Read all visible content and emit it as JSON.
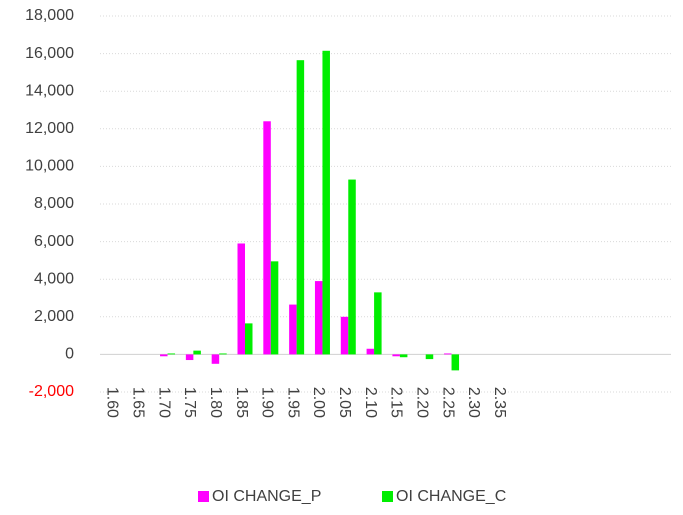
{
  "chart_data": {
    "type": "bar",
    "categories": [
      "1.60",
      "1.65",
      "1.70",
      "1.75",
      "1.80",
      "1.85",
      "1.90",
      "1.95",
      "2.00",
      "2.05",
      "2.10",
      "2.15",
      "2.20",
      "2.25",
      "2.30",
      "2.35",
      null,
      null,
      null,
      null,
      null,
      null
    ],
    "series": [
      {
        "name": "OI CHANGE_P",
        "color": "#ff00ff",
        "values": [
          0,
          0,
          -100,
          -300,
          -500,
          5900,
          12400,
          2650,
          3900,
          2000,
          300,
          -100,
          0,
          50,
          0,
          0,
          null,
          null,
          null,
          null,
          null,
          null
        ]
      },
      {
        "name": "OI CHANGE_C",
        "color": "#00ee00",
        "values": [
          0,
          0,
          50,
          200,
          50,
          1650,
          4950,
          15650,
          16150,
          9300,
          3300,
          -150,
          -250,
          -850,
          0,
          0,
          null,
          null,
          null,
          null,
          null,
          null
        ]
      }
    ],
    "ylim": [
      -2000,
      18000
    ],
    "yticks": [
      {
        "value": -2000,
        "label": "-2,000"
      },
      0,
      {
        "value": 2000,
        "label": "2,000"
      },
      {
        "value": 4000,
        "label": "4,000"
      },
      {
        "value": 6000,
        "label": "6,000"
      },
      {
        "value": 8000,
        "label": "8,000"
      },
      {
        "value": 10000,
        "label": "10,000"
      },
      {
        "value": 12000,
        "label": "12,000"
      },
      {
        "value": 14000,
        "label": "14,000"
      },
      {
        "value": 16000,
        "label": "16,000"
      },
      {
        "value": 18000,
        "label": "18,000"
      }
    ],
    "grid": true,
    "negative_tick_color": "#ff0000",
    "legend": "bottom"
  }
}
